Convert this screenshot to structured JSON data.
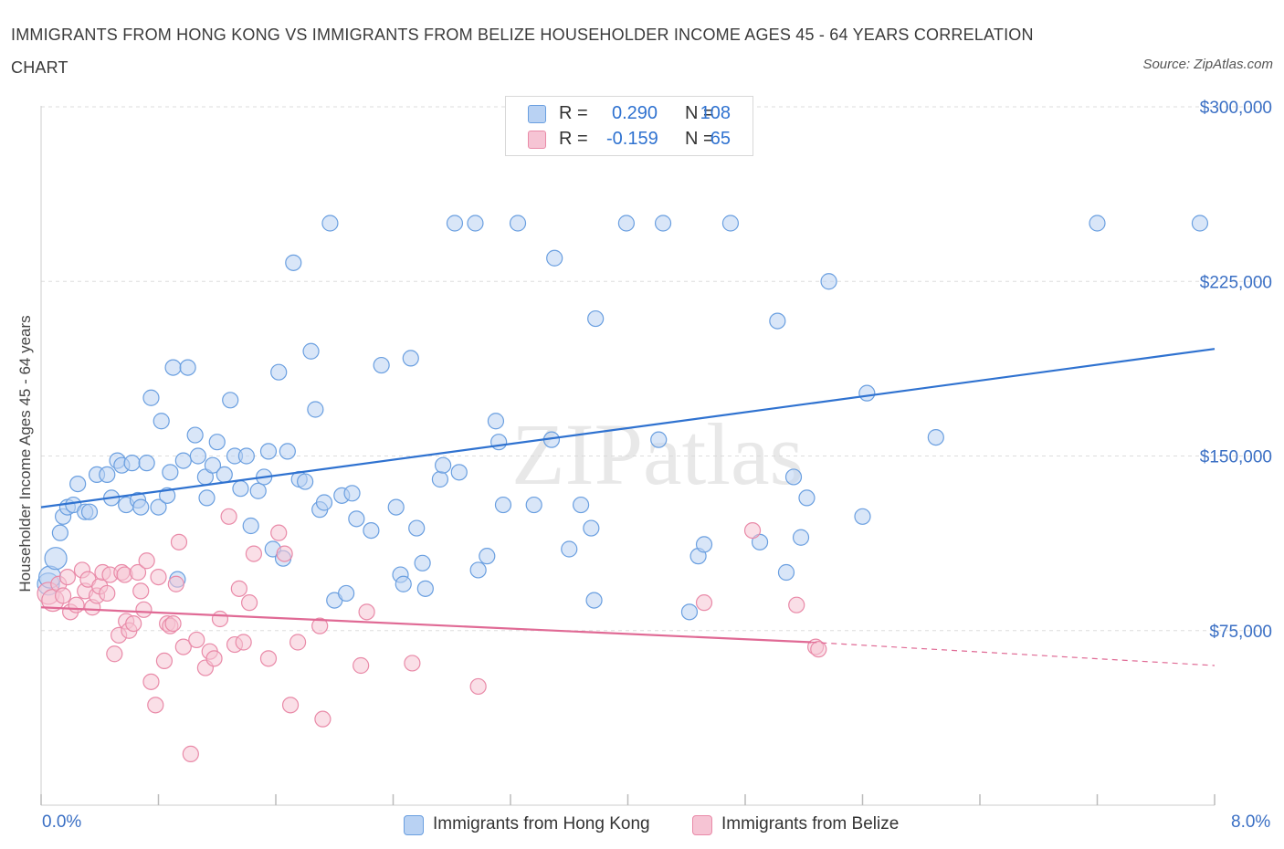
{
  "chart_data": {
    "type": "scatter",
    "title": "IMMIGRANTS FROM HONG KONG VS IMMIGRANTS FROM BELIZE HOUSEHOLDER INCOME AGES 45 - 64 YEARS CORRELATION CHART",
    "source": "Source: ZipAtlas.com",
    "xlabel": "",
    "ylabel": "Householder Income Ages 45 - 64 years",
    "xlim": [
      0,
      8
    ],
    "ylim": [
      0,
      300000
    ],
    "x_tick_labels": [
      "0.0%",
      "8.0%"
    ],
    "y_tick_labels": [
      "$75,000",
      "$150,000",
      "$225,000",
      "$300,000"
    ],
    "y_ticks": [
      75000,
      150000,
      225000,
      300000
    ],
    "watermark": "ZIPatlas",
    "legend": {
      "position": "top-center",
      "r_label": "R =",
      "n_label": "N =",
      "entries": [
        {
          "r": "0.290",
          "n": "108"
        },
        {
          "r": "-0.159",
          "n": "65"
        }
      ]
    },
    "series": [
      {
        "name": "Immigrants from Hong Kong",
        "color": "#6a9fe0",
        "fill": "#b9d2f3",
        "line_color": "#2f72d0",
        "trend": {
          "x0": 0.0,
          "y0": 128000,
          "x1": 8.0,
          "y1": 196000
        },
        "points": [
          [
            0.05,
            95000
          ],
          [
            0.06,
            98000
          ],
          [
            0.1,
            106000
          ],
          [
            0.13,
            117000
          ],
          [
            0.15,
            124000
          ],
          [
            0.18,
            128000
          ],
          [
            0.22,
            129000
          ],
          [
            0.25,
            138000
          ],
          [
            0.3,
            126000
          ],
          [
            0.33,
            126000
          ],
          [
            0.38,
            142000
          ],
          [
            0.45,
            142000
          ],
          [
            0.48,
            132000
          ],
          [
            0.52,
            148000
          ],
          [
            0.55,
            146000
          ],
          [
            0.58,
            129000
          ],
          [
            0.62,
            147000
          ],
          [
            0.66,
            131000
          ],
          [
            0.68,
            128000
          ],
          [
            0.72,
            147000
          ],
          [
            0.75,
            175000
          ],
          [
            0.8,
            128000
          ],
          [
            0.82,
            165000
          ],
          [
            0.86,
            133000
          ],
          [
            0.88,
            143000
          ],
          [
            0.9,
            188000
          ],
          [
            0.93,
            97000
          ],
          [
            0.97,
            148000
          ],
          [
            1.0,
            188000
          ],
          [
            1.05,
            159000
          ],
          [
            1.07,
            150000
          ],
          [
            1.12,
            141000
          ],
          [
            1.13,
            132000
          ],
          [
            1.17,
            146000
          ],
          [
            1.2,
            156000
          ],
          [
            1.25,
            142000
          ],
          [
            1.29,
            174000
          ],
          [
            1.32,
            150000
          ],
          [
            1.36,
            136000
          ],
          [
            1.4,
            150000
          ],
          [
            1.43,
            120000
          ],
          [
            1.48,
            135000
          ],
          [
            1.52,
            141000
          ],
          [
            1.55,
            152000
          ],
          [
            1.58,
            110000
          ],
          [
            1.62,
            186000
          ],
          [
            1.65,
            106000
          ],
          [
            1.68,
            152000
          ],
          [
            1.72,
            233000
          ],
          [
            1.76,
            140000
          ],
          [
            1.8,
            139000
          ],
          [
            1.84,
            195000
          ],
          [
            1.87,
            170000
          ],
          [
            1.9,
            127000
          ],
          [
            1.93,
            130000
          ],
          [
            1.97,
            250000
          ],
          [
            2.0,
            88000
          ],
          [
            2.05,
            133000
          ],
          [
            2.08,
            91000
          ],
          [
            2.12,
            134000
          ],
          [
            2.15,
            123000
          ],
          [
            2.25,
            118000
          ],
          [
            2.32,
            189000
          ],
          [
            2.42,
            128000
          ],
          [
            2.45,
            99000
          ],
          [
            2.47,
            95000
          ],
          [
            2.52,
            192000
          ],
          [
            2.56,
            119000
          ],
          [
            2.6,
            104000
          ],
          [
            2.62,
            93000
          ],
          [
            2.72,
            140000
          ],
          [
            2.74,
            146000
          ],
          [
            2.82,
            250000
          ],
          [
            2.85,
            143000
          ],
          [
            2.96,
            250000
          ],
          [
            2.98,
            101000
          ],
          [
            3.04,
            107000
          ],
          [
            3.1,
            165000
          ],
          [
            3.12,
            156000
          ],
          [
            3.15,
            129000
          ],
          [
            3.25,
            250000
          ],
          [
            3.36,
            129000
          ],
          [
            3.48,
            157000
          ],
          [
            3.5,
            235000
          ],
          [
            3.6,
            110000
          ],
          [
            3.68,
            129000
          ],
          [
            3.75,
            119000
          ],
          [
            3.77,
            88000
          ],
          [
            3.78,
            209000
          ],
          [
            3.99,
            250000
          ],
          [
            4.21,
            157000
          ],
          [
            4.24,
            250000
          ],
          [
            4.42,
            83000
          ],
          [
            4.48,
            107000
          ],
          [
            4.52,
            112000
          ],
          [
            4.7,
            250000
          ],
          [
            4.9,
            113000
          ],
          [
            5.02,
            208000
          ],
          [
            5.08,
            100000
          ],
          [
            5.13,
            141000
          ],
          [
            5.18,
            115000
          ],
          [
            5.22,
            132000
          ],
          [
            5.37,
            225000
          ],
          [
            5.6,
            124000
          ],
          [
            5.63,
            177000
          ],
          [
            6.1,
            158000
          ],
          [
            7.2,
            250000
          ],
          [
            7.9,
            250000
          ]
        ]
      },
      {
        "name": "Immigrants from Belize",
        "color": "#e98aa8",
        "fill": "#f6c4d4",
        "line_color": "#e06a95",
        "trend": {
          "x0": 0.0,
          "y0": 85000,
          "x1": 5.25,
          "y1": 70000
        },
        "trend_dashed_to": {
          "x": 8.0,
          "y": 60000
        },
        "points": [
          [
            0.05,
            91000
          ],
          [
            0.08,
            88000
          ],
          [
            0.12,
            95000
          ],
          [
            0.15,
            90000
          ],
          [
            0.18,
            98000
          ],
          [
            0.2,
            83000
          ],
          [
            0.24,
            86000
          ],
          [
            0.28,
            101000
          ],
          [
            0.3,
            92000
          ],
          [
            0.32,
            97000
          ],
          [
            0.35,
            85000
          ],
          [
            0.38,
            90000
          ],
          [
            0.4,
            94000
          ],
          [
            0.42,
            100000
          ],
          [
            0.45,
            91000
          ],
          [
            0.47,
            99000
          ],
          [
            0.5,
            65000
          ],
          [
            0.53,
            73000
          ],
          [
            0.55,
            100000
          ],
          [
            0.57,
            99000
          ],
          [
            0.58,
            79000
          ],
          [
            0.6,
            75000
          ],
          [
            0.63,
            78000
          ],
          [
            0.66,
            100000
          ],
          [
            0.68,
            92000
          ],
          [
            0.7,
            84000
          ],
          [
            0.72,
            105000
          ],
          [
            0.75,
            53000
          ],
          [
            0.78,
            43000
          ],
          [
            0.8,
            98000
          ],
          [
            0.84,
            62000
          ],
          [
            0.86,
            78000
          ],
          [
            0.88,
            77000
          ],
          [
            0.9,
            78000
          ],
          [
            0.92,
            95000
          ],
          [
            0.94,
            113000
          ],
          [
            0.97,
            68000
          ],
          [
            1.02,
            22000
          ],
          [
            1.06,
            71000
          ],
          [
            1.12,
            59000
          ],
          [
            1.15,
            66000
          ],
          [
            1.18,
            63000
          ],
          [
            1.22,
            80000
          ],
          [
            1.28,
            124000
          ],
          [
            1.32,
            69000
          ],
          [
            1.35,
            93000
          ],
          [
            1.38,
            70000
          ],
          [
            1.42,
            87000
          ],
          [
            1.45,
            108000
          ],
          [
            1.55,
            63000
          ],
          [
            1.62,
            117000
          ],
          [
            1.66,
            108000
          ],
          [
            1.7,
            43000
          ],
          [
            1.75,
            70000
          ],
          [
            1.9,
            77000
          ],
          [
            1.92,
            37000
          ],
          [
            2.18,
            60000
          ],
          [
            2.22,
            83000
          ],
          [
            2.53,
            61000
          ],
          [
            2.98,
            51000
          ],
          [
            4.52,
            87000
          ],
          [
            4.85,
            118000
          ],
          [
            5.15,
            86000
          ],
          [
            5.28,
            68000
          ],
          [
            5.3,
            67000
          ]
        ]
      }
    ]
  }
}
